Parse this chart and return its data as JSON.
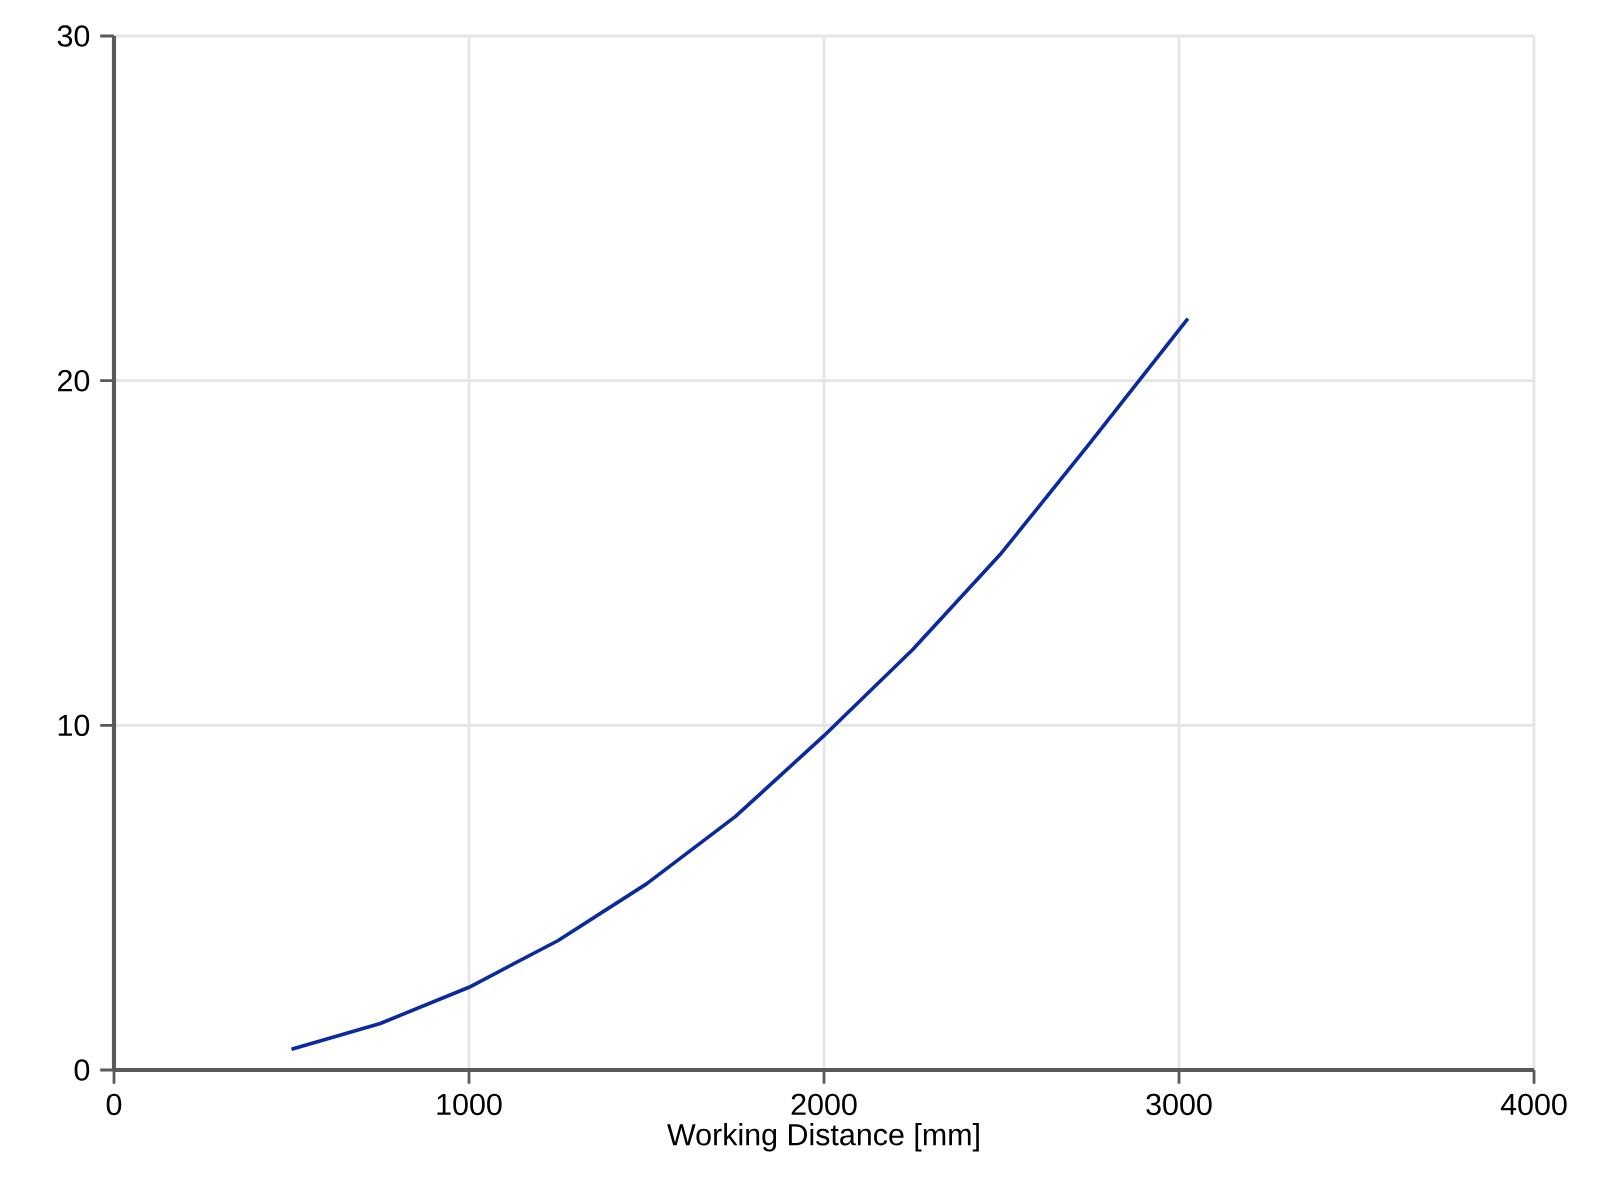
{
  "chart_data": {
    "type": "line",
    "xlabel": "Working Distance [mm]",
    "x": [
      500,
      750,
      1000,
      1250,
      1500,
      1750,
      2000,
      2250,
      2500,
      2750,
      3025
    ],
    "values": [
      0.6,
      1.35,
      2.4,
      3.75,
      5.4,
      7.35,
      9.7,
      12.2,
      15.0,
      18.2,
      21.8
    ],
    "color": "#0b2a9e",
    "xlim": [
      0,
      4000
    ],
    "ylim": [
      0,
      30
    ],
    "xticks": [
      0,
      1000,
      2000,
      3000,
      4000
    ],
    "yticks": [
      0,
      10,
      20,
      30
    ],
    "grid": true
  }
}
